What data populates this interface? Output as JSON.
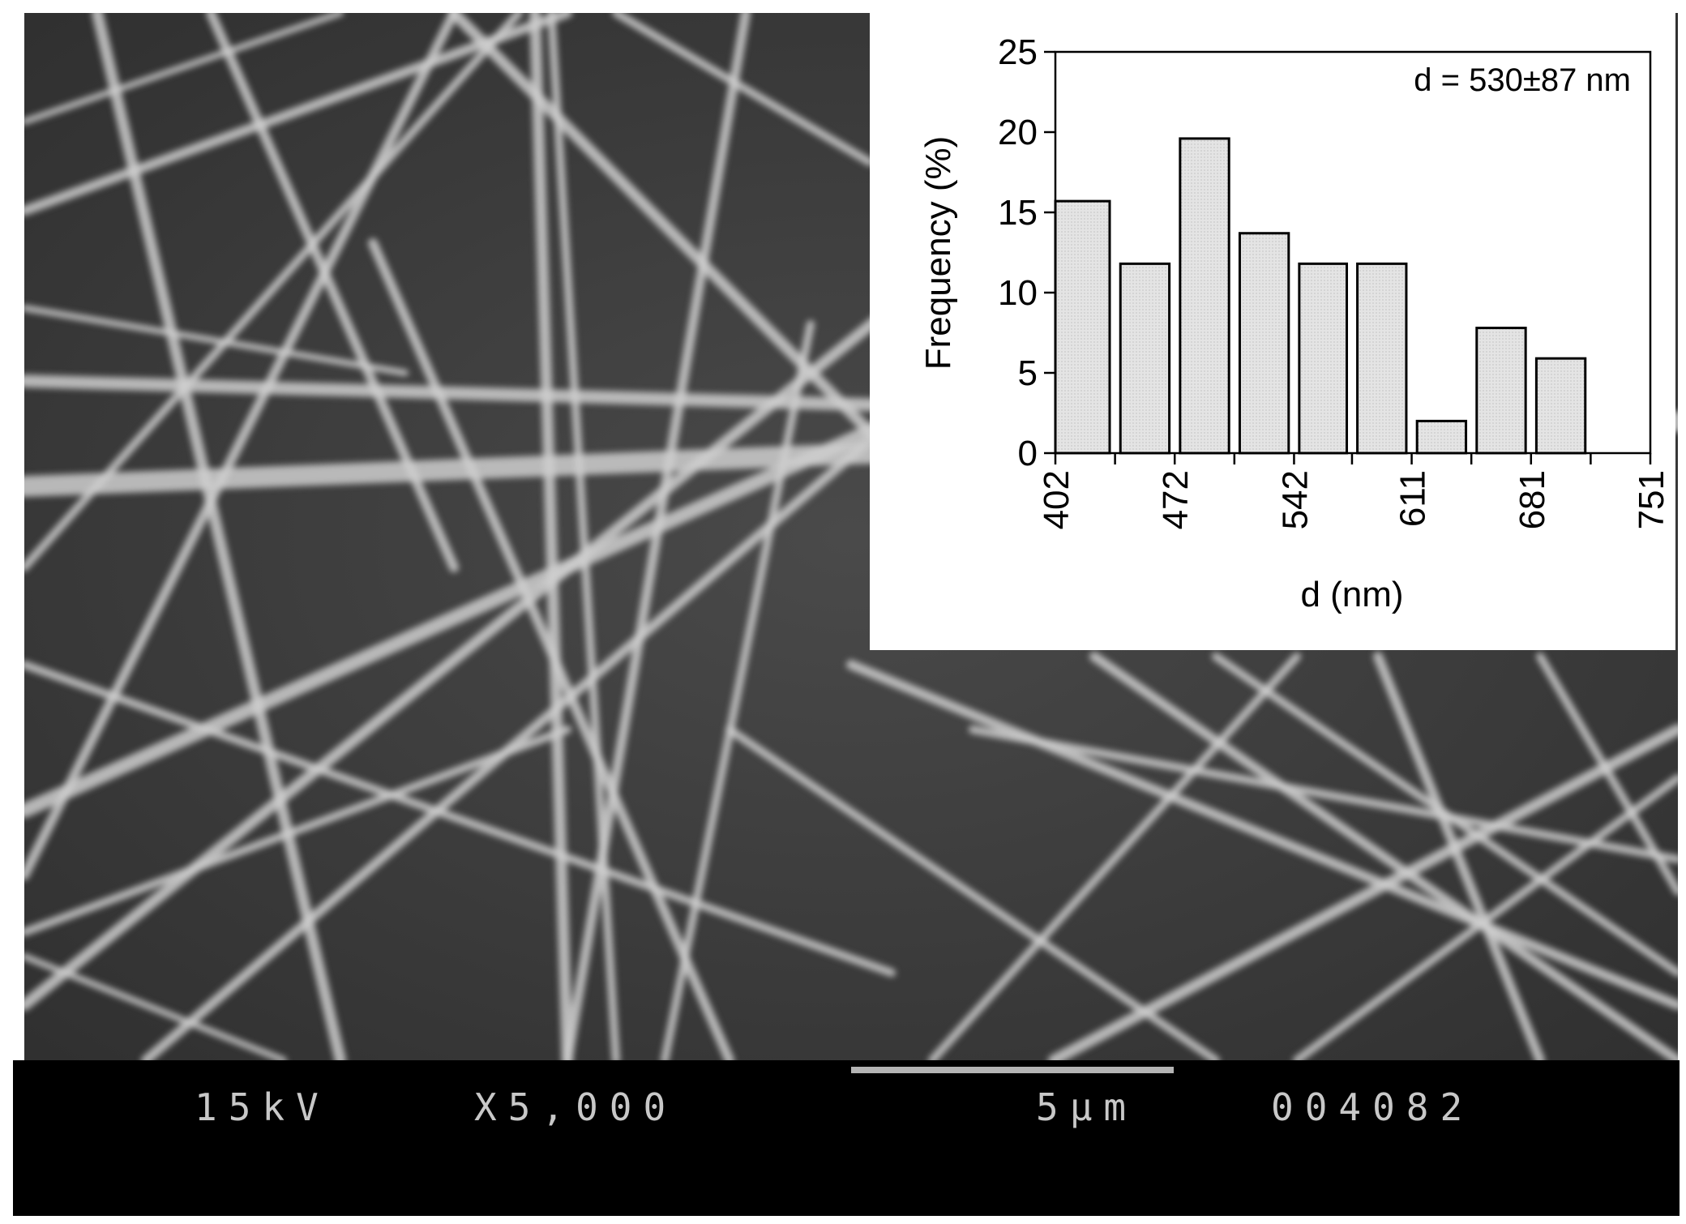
{
  "sem": {
    "voltage": "15kV",
    "magnification": "X5,000",
    "scale_label": "5µm",
    "image_number": "004082"
  },
  "colors": {
    "sem_background": "#3c3c3c",
    "fiber": "#cfcfcf",
    "info_bar": "#000000",
    "info_text": "#c8c8c8",
    "bar_fill": "#e6e6e6",
    "bar_stroke": "#000000"
  },
  "chart_data": {
    "type": "bar",
    "categories": [
      "402-437",
      "437-472",
      "472-507",
      "507-542",
      "542-576",
      "576-611",
      "611-646",
      "646-681",
      "681-716",
      "716-751"
    ],
    "bin_edges": [
      402,
      437,
      472,
      507,
      542,
      576,
      611,
      646,
      681,
      716,
      751
    ],
    "values": [
      15.7,
      11.8,
      19.6,
      13.7,
      11.8,
      11.8,
      2.0,
      7.8,
      5.9,
      0
    ],
    "x_tick_labels": [
      "402",
      "472",
      "542",
      "611",
      "681",
      "751"
    ],
    "y_tick_labels": [
      "0",
      "5",
      "10",
      "15",
      "20",
      "25"
    ],
    "xlabel": "d (nm)",
    "ylabel": "Frequency (%)",
    "ylim": [
      0,
      25
    ],
    "xlim": [
      402,
      751
    ],
    "annotation": "d = 530±87 nm",
    "grid": false,
    "legend": "none"
  }
}
